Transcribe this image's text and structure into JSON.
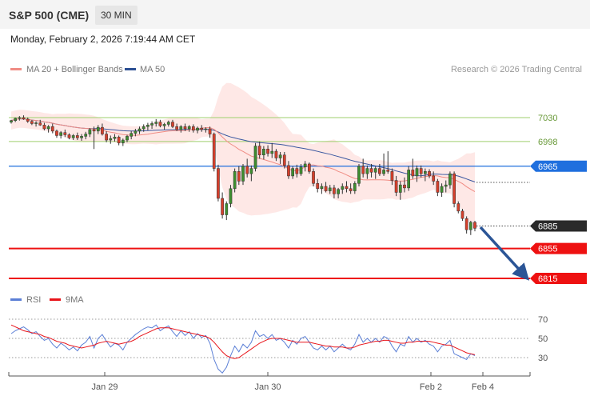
{
  "header": {
    "title": "S&P 500 (CME)",
    "timeframe": "30 MIN"
  },
  "date_line": "Monday, February 2, 2026 7:19:44 AM CET",
  "legend": {
    "ma20": {
      "label": "MA 20 + Bollinger Bands",
      "color": "#f08c84"
    },
    "ma50": {
      "label": "MA 50",
      "color": "#2b4f93"
    }
  },
  "copyright": "Research © 2026 Trading Central",
  "rsi_legend": {
    "rsi": {
      "label": "RSI",
      "color": "#5b7fd6"
    },
    "ma9": {
      "label": "9MA",
      "color": "#e8141a"
    }
  },
  "chart_data": [
    {
      "type": "candlestick",
      "title": "S&P 500 (CME)",
      "timeframe": "30 MIN",
      "ylim": [
        6795,
        7060
      ],
      "levels": [
        {
          "value": 7030,
          "label": "7030",
          "kind": "resistance",
          "color": "#9fcf6c"
        },
        {
          "value": 6998,
          "label": "6998",
          "kind": "resistance",
          "color": "#9fcf6c"
        },
        {
          "value": 6965,
          "label": "6965",
          "kind": "pivot",
          "color": "#1f6fde"
        },
        {
          "value": 6885,
          "label": "6885",
          "kind": "last",
          "color": "#2a2a2a"
        },
        {
          "value": 6855,
          "label": "6855",
          "kind": "support",
          "color": "#ee1111"
        },
        {
          "value": 6815,
          "label": "6815",
          "kind": "support",
          "color": "#ee1111"
        }
      ],
      "x_ticks": [
        "Jan 29",
        "Jan 30",
        "Feb 2",
        "Feb 4"
      ],
      "candles": [
        [
          7024,
          7027,
          7022,
          7026
        ],
        [
          7026,
          7030,
          7024,
          7029
        ],
        [
          7029,
          7032,
          7026,
          7030
        ],
        [
          7030,
          7033,
          7027,
          7028
        ],
        [
          7028,
          7030,
          7023,
          7025
        ],
        [
          7025,
          7027,
          7020,
          7022
        ],
        [
          7022,
          7025,
          7018,
          7023
        ],
        [
          7023,
          7027,
          7019,
          7020
        ],
        [
          7020,
          7023,
          7013,
          7015
        ],
        [
          7015,
          7020,
          7010,
          7018
        ],
        [
          7018,
          7022,
          7009,
          7012
        ],
        [
          7012,
          7014,
          7003,
          7006
        ],
        [
          7006,
          7012,
          7002,
          7010
        ],
        [
          7010,
          7014,
          7004,
          7007
        ],
        [
          7007,
          7009,
          7001,
          7003
        ],
        [
          7003,
          7008,
          7000,
          7006
        ],
        [
          7006,
          7010,
          7000,
          7003
        ],
        [
          7003,
          7008,
          6999,
          7005
        ],
        [
          7005,
          7011,
          7001,
          7008
        ],
        [
          7008,
          7016,
          7004,
          7014
        ],
        [
          7014,
          7018,
          6988,
          7012
        ],
        [
          7012,
          7020,
          7008,
          7017
        ],
        [
          7017,
          7022,
          7006,
          7008
        ],
        [
          7008,
          7012,
          6997,
          7000
        ],
        [
          7000,
          7006,
          6995,
          7002
        ],
        [
          7002,
          7008,
          6998,
          7004
        ],
        [
          7004,
          7006,
          6993,
          6996
        ],
        [
          6996,
          7002,
          6992,
          7000
        ],
        [
          7000,
          7007,
          6997,
          7005
        ],
        [
          7005,
          7012,
          7001,
          7009
        ],
        [
          7009,
          7015,
          7005,
          7012
        ],
        [
          7012,
          7018,
          7008,
          7015
        ],
        [
          7015,
          7021,
          7011,
          7018
        ],
        [
          7018,
          7023,
          7013,
          7020
        ],
        [
          7020,
          7025,
          7015,
          7022
        ],
        [
          7022,
          7028,
          7018,
          7024
        ],
        [
          7024,
          7027,
          7017,
          7019
        ],
        [
          7019,
          7023,
          7014,
          7021
        ],
        [
          7021,
          7026,
          7018,
          7024
        ],
        [
          7024,
          7027,
          7016,
          7018
        ],
        [
          7018,
          7022,
          7012,
          7014
        ],
        [
          7014,
          7020,
          7010,
          7018
        ],
        [
          7018,
          7022,
          7012,
          7015
        ],
        [
          7015,
          7020,
          7011,
          7018
        ],
        [
          7018,
          7021,
          7010,
          7013
        ],
        [
          7013,
          7018,
          7009,
          7016
        ],
        [
          7016,
          7020,
          7011,
          7014
        ],
        [
          7014,
          7017,
          7010,
          7015
        ],
        [
          7015,
          7018,
          7003,
          7008
        ],
        [
          7008,
          7010,
          6958,
          6962
        ],
        [
          6962,
          6967,
          6918,
          6922
        ],
        [
          6922,
          6930,
          6895,
          6900
        ],
        [
          6900,
          6918,
          6893,
          6915
        ],
        [
          6915,
          6940,
          6910,
          6935
        ],
        [
          6935,
          6962,
          6930,
          6958
        ],
        [
          6958,
          6965,
          6940,
          6945
        ],
        [
          6945,
          6968,
          6940,
          6965
        ],
        [
          6965,
          6975,
          6950,
          6955
        ],
        [
          6955,
          6966,
          6945,
          6962
        ],
        [
          6962,
          6996,
          6958,
          6992
        ],
        [
          6992,
          6998,
          6975,
          6980
        ],
        [
          6980,
          6992,
          6974,
          6988
        ],
        [
          6988,
          6993,
          6978,
          6982
        ],
        [
          6982,
          6996,
          6976,
          6985
        ],
        [
          6985,
          6988,
          6972,
          6976
        ],
        [
          6976,
          6984,
          6968,
          6980
        ],
        [
          6980,
          6984,
          6962,
          6966
        ],
        [
          6966,
          6972,
          6948,
          6952
        ],
        [
          6952,
          6965,
          6948,
          6962
        ],
        [
          6962,
          6967,
          6950,
          6955
        ],
        [
          6955,
          6968,
          6952,
          6964
        ],
        [
          6964,
          6972,
          6958,
          6968
        ],
        [
          6968,
          6970,
          6955,
          6958
        ],
        [
          6958,
          6962,
          6938,
          6942
        ],
        [
          6942,
          6948,
          6930,
          6935
        ],
        [
          6935,
          6942,
          6928,
          6938
        ],
        [
          6938,
          6944,
          6930,
          6932
        ],
        [
          6932,
          6940,
          6928,
          6936
        ],
        [
          6936,
          6940,
          6922,
          6928
        ],
        [
          6928,
          6936,
          6922,
          6934
        ],
        [
          6934,
          6942,
          6928,
          6938
        ],
        [
          6938,
          6945,
          6930,
          6935
        ],
        [
          6935,
          6942,
          6928,
          6932
        ],
        [
          6932,
          6945,
          6928,
          6942
        ],
        [
          6942,
          6968,
          6938,
          6965
        ],
        [
          6965,
          6975,
          6950,
          6955
        ],
        [
          6955,
          6966,
          6948,
          6962
        ],
        [
          6962,
          6968,
          6950,
          6957
        ],
        [
          6957,
          6965,
          6948,
          6962
        ],
        [
          6962,
          6968,
          6952,
          6955
        ],
        [
          6955,
          6982,
          6952,
          6960
        ],
        [
          6960,
          6985,
          6955,
          6958
        ],
        [
          6958,
          6962,
          6940,
          6946
        ],
        [
          6946,
          6952,
          6925,
          6930
        ],
        [
          6930,
          6945,
          6920,
          6940
        ],
        [
          6940,
          6950,
          6930,
          6936
        ],
        [
          6936,
          6965,
          6932,
          6960
        ],
        [
          6960,
          6975,
          6948,
          6952
        ],
        [
          6952,
          6966,
          6944,
          6962
        ],
        [
          6962,
          6966,
          6950,
          6955
        ],
        [
          6955,
          6962,
          6945,
          6958
        ],
        [
          6958,
          6961,
          6949,
          6952
        ],
        [
          6952,
          6958,
          6940,
          6945
        ],
        [
          6945,
          6948,
          6925,
          6930
        ],
        [
          6930,
          6942,
          6924,
          6938
        ],
        [
          6938,
          6946,
          6930,
          6940
        ],
        [
          6940,
          6958,
          6935,
          6955
        ],
        [
          6955,
          6958,
          6910,
          6915
        ],
        [
          6915,
          6918,
          6902,
          6905
        ],
        [
          6905,
          6908,
          6892,
          6895
        ],
        [
          6895,
          6898,
          6875,
          6880
        ],
        [
          6880,
          6892,
          6873,
          6890
        ],
        [
          6890,
          6892,
          6878,
          6882
        ]
      ]
    },
    {
      "type": "line",
      "title": "RSI",
      "series_names": [
        "RSI",
        "9MA"
      ],
      "ylim": [
        15,
        80
      ],
      "yticks": [
        30,
        50,
        70
      ],
      "rsi": [
        55,
        58,
        60,
        62,
        59,
        55,
        57,
        52,
        48,
        50,
        44,
        40,
        45,
        42,
        38,
        41,
        37,
        43,
        46,
        52,
        40,
        50,
        54,
        47,
        41,
        45,
        43,
        38,
        46,
        50,
        54,
        57,
        60,
        62,
        61,
        64,
        58,
        61,
        63,
        57,
        52,
        58,
        53,
        57,
        50,
        55,
        51,
        53,
        45,
        28,
        18,
        14,
        20,
        32,
        42,
        36,
        44,
        40,
        46,
        58,
        52,
        54,
        50,
        54,
        48,
        50,
        46,
        40,
        48,
        44,
        50,
        52,
        46,
        40,
        38,
        42,
        38,
        42,
        36,
        40,
        44,
        40,
        38,
        44,
        54,
        46,
        50,
        46,
        50,
        46,
        52,
        50,
        42,
        36,
        44,
        42,
        52,
        46,
        50,
        46,
        48,
        44,
        42,
        36,
        42,
        44,
        48,
        34,
        32,
        30,
        28,
        34,
        32
      ],
      "ma9": [
        64,
        62,
        60,
        58,
        57,
        56,
        55,
        54,
        52,
        51,
        49,
        47,
        46,
        45,
        43,
        42,
        41,
        40,
        41,
        42,
        43,
        45,
        46,
        47,
        46,
        45,
        44,
        45,
        46,
        47,
        49,
        52,
        54,
        56,
        58,
        60,
        61,
        61,
        61,
        60,
        59,
        58,
        57,
        56,
        55,
        54,
        53,
        52,
        50,
        46,
        41,
        36,
        32,
        30,
        29,
        30,
        33,
        36,
        39,
        42,
        45,
        47,
        49,
        50,
        50,
        50,
        49,
        48,
        47,
        46,
        46,
        46,
        46,
        45,
        44,
        43,
        42,
        42,
        41,
        41,
        41,
        40,
        40,
        41,
        43,
        44,
        45,
        46,
        47,
        47,
        48,
        48,
        47,
        46,
        45,
        45,
        46,
        46,
        47,
        47,
        47,
        47,
        46,
        45,
        44,
        43,
        43,
        41,
        39,
        37,
        35,
        34,
        33
      ]
    }
  ]
}
